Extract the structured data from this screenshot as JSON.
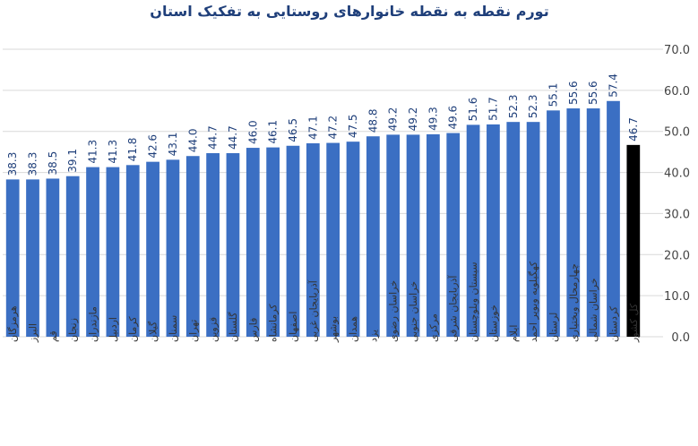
{
  "chart_data": {
    "type": "bar",
    "title": "تورم نقطه به نقطه خانوارهای روستایی به تفکیک استان",
    "categories": [
      "هرمزگان",
      "البرز",
      "قم",
      "زنجان",
      "مازندران",
      "اردبیل",
      "کرمان",
      "گیلان",
      "سمنان",
      "تهران",
      "قزوین",
      "گلستان",
      "فارس",
      "کرمانشاه",
      "اصفهان",
      "آذربایجان غربی",
      "بوشهر",
      "همدان",
      "یزد",
      "خراسان رضوی",
      "خراسان جنوبی",
      "مرکزی",
      "آذربایجان شرقی",
      "سیستان وبلوچستان",
      "خوزستان",
      "ایلام",
      "کهگیلویه وبویر احمد",
      "لرستان",
      "چهارمحال وبختیاری",
      "خراسان شمالی",
      "کردستان",
      "کل کشور"
    ],
    "values": [
      38.3,
      38.3,
      38.5,
      39.1,
      41.3,
      41.3,
      41.8,
      42.6,
      43.1,
      44.0,
      44.7,
      44.7,
      46.0,
      46.1,
      46.5,
      47.1,
      47.2,
      47.5,
      48.8,
      49.2,
      49.2,
      49.3,
      49.6,
      51.6,
      51.7,
      52.3,
      52.3,
      55.1,
      55.6,
      55.6,
      57.4,
      46.7
    ],
    "value_labels": [
      "38.3",
      "38.3",
      "38.5",
      "39.1",
      "41.3",
      "41.3",
      "41.8",
      "42.6",
      "43.1",
      "44.0",
      "44.7",
      "44.7",
      "46.0",
      "46.1",
      "46.5",
      "47.1",
      "47.2",
      "47.5",
      "48.8",
      "49.2",
      "49.2",
      "49.3",
      "49.6",
      "51.6",
      "51.7",
      "52.3",
      "52.3",
      "55.1",
      "55.6",
      "55.6",
      "57.4",
      "46.7"
    ],
    "color": "#3b6fc3",
    "highlight_color": "#000000",
    "highlight_index": 31,
    "ylim": [
      0,
      70
    ],
    "yticks": [
      {
        "value": 0,
        "label": "0.0"
      },
      {
        "value": 10,
        "label": "10.0"
      },
      {
        "value": 20,
        "label": "20.0"
      },
      {
        "value": 30,
        "label": "30.0"
      },
      {
        "value": 40,
        "label": "40.0"
      },
      {
        "value": 50,
        "label": "50.0"
      },
      {
        "value": 60,
        "label": "60.0"
      },
      {
        "value": 70,
        "label": "70.0"
      }
    ],
    "grid": true
  }
}
